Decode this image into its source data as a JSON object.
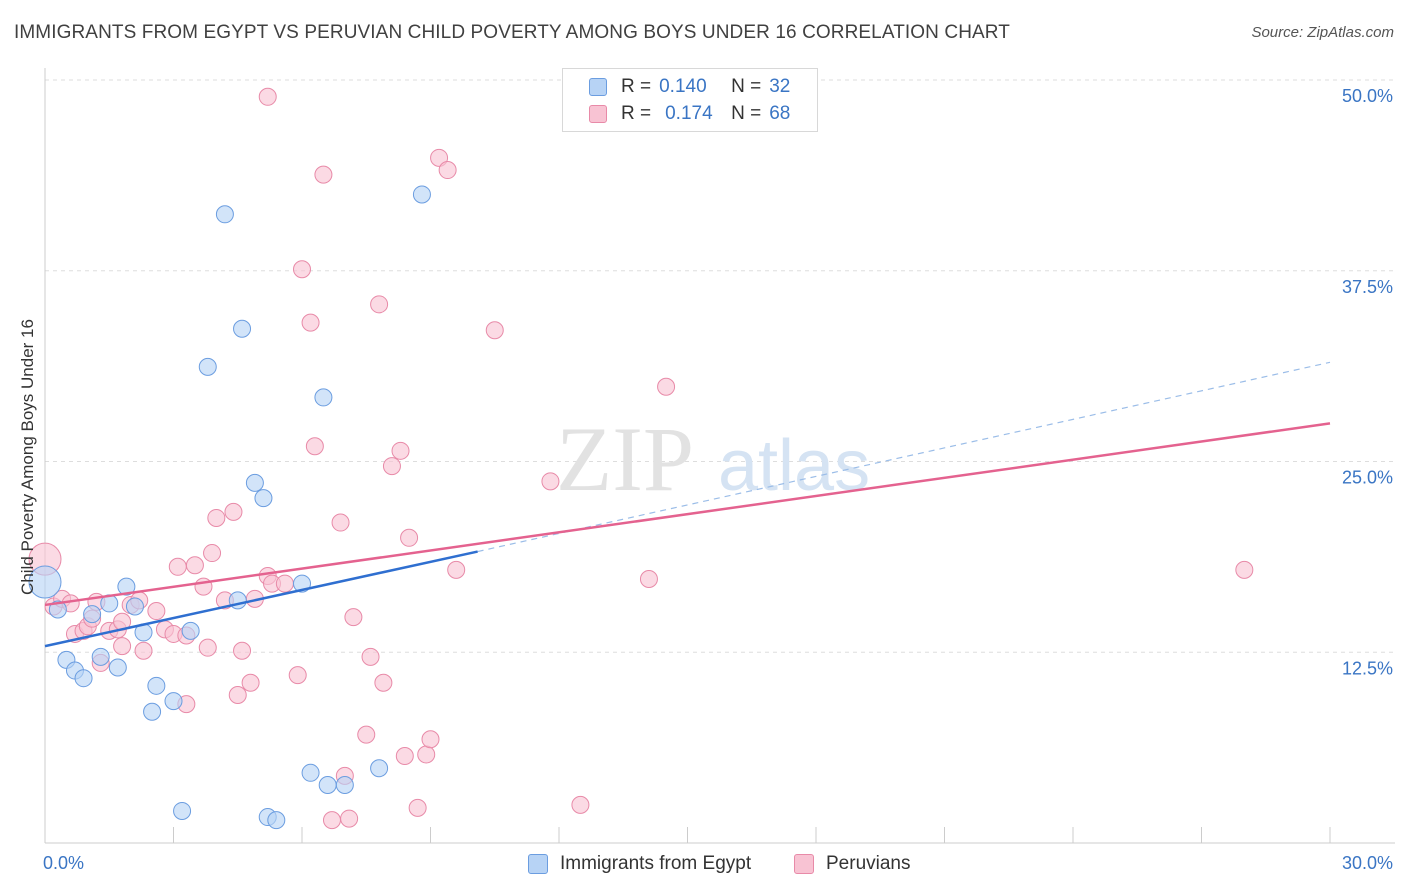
{
  "header": {
    "title": "IMMIGRANTS FROM EGYPT VS PERUVIAN CHILD POVERTY AMONG BOYS UNDER 16 CORRELATION CHART",
    "source": "Source: ZipAtlas.com"
  },
  "watermark": {
    "zip": "ZIP",
    "atlas": "atlas"
  },
  "legend": {
    "rows": [
      {
        "r_label": "R =",
        "r_value": "0.140",
        "n_label": "N =",
        "n_value": "32"
      },
      {
        "r_label": "R =",
        "r_value": "0.174",
        "n_label": "N =",
        "n_value": "68"
      }
    ]
  },
  "bottom_legend": {
    "items": [
      "Immigrants from Egypt",
      "Peruvians"
    ]
  },
  "colors": {
    "blue_fill": "#b7d3f5",
    "blue_stroke": "#6b9de0",
    "blue_line": "#2f6fd0",
    "pink_fill": "#f8c3d3",
    "pink_stroke": "#e88aa8",
    "pink_line": "#e4628f",
    "tick_text": "#3a75c4",
    "grid": "#dddddd"
  },
  "chart_data": {
    "type": "scatter",
    "title": "IMMIGRANTS FROM EGYPT VS PERUVIAN CHILD POVERTY AMONG BOYS UNDER 16 CORRELATION CHART",
    "xlabel": "",
    "ylabel": "Child Poverty Among Boys Under 16",
    "xlim": [
      0,
      30
    ],
    "ylim": [
      0,
      50
    ],
    "x_tick_labels": [
      "0.0%",
      "30.0%"
    ],
    "y_ticks": [
      12.5,
      25.0,
      37.5,
      50.0
    ],
    "y_tick_labels": [
      "12.5%",
      "25.0%",
      "37.5%",
      "50.0%"
    ],
    "series": [
      {
        "name": "Immigrants from Egypt",
        "R": 0.14,
        "N": 32,
        "trend": {
          "x": [
            0,
            10.1
          ],
          "y": [
            12.9,
            19.1
          ]
        },
        "trend_dashed": {
          "x": [
            10.1,
            30
          ],
          "y": [
            19.1,
            31.5
          ]
        },
        "points": [
          {
            "x": 0.0,
            "y": 17.1,
            "big": true
          },
          {
            "x": 0.3,
            "y": 15.3
          },
          {
            "x": 0.5,
            "y": 12.0
          },
          {
            "x": 0.7,
            "y": 11.3
          },
          {
            "x": 0.9,
            "y": 10.8
          },
          {
            "x": 1.1,
            "y": 15.0
          },
          {
            "x": 1.3,
            "y": 12.2
          },
          {
            "x": 1.5,
            "y": 15.7
          },
          {
            "x": 1.7,
            "y": 11.5
          },
          {
            "x": 1.9,
            "y": 16.8
          },
          {
            "x": 2.1,
            "y": 15.5
          },
          {
            "x": 2.3,
            "y": 13.8
          },
          {
            "x": 2.5,
            "y": 8.6
          },
          {
            "x": 2.6,
            "y": 10.3
          },
          {
            "x": 3.0,
            "y": 9.3
          },
          {
            "x": 3.2,
            "y": 2.1
          },
          {
            "x": 3.4,
            "y": 13.9
          },
          {
            "x": 3.8,
            "y": 31.2
          },
          {
            "x": 4.2,
            "y": 41.2
          },
          {
            "x": 4.5,
            "y": 15.9
          },
          {
            "x": 4.6,
            "y": 33.7
          },
          {
            "x": 4.9,
            "y": 23.6
          },
          {
            "x": 5.1,
            "y": 22.6
          },
          {
            "x": 5.2,
            "y": 1.7
          },
          {
            "x": 5.4,
            "y": 1.5
          },
          {
            "x": 6.0,
            "y": 17.0
          },
          {
            "x": 6.2,
            "y": 4.6
          },
          {
            "x": 6.6,
            "y": 3.8
          },
          {
            "x": 6.5,
            "y": 29.2
          },
          {
            "x": 7.0,
            "y": 3.8
          },
          {
            "x": 7.8,
            "y": 4.9
          },
          {
            "x": 8.8,
            "y": 42.5
          }
        ]
      },
      {
        "name": "Peruvians",
        "R": 0.174,
        "N": 68,
        "trend": {
          "x": [
            0,
            30
          ],
          "y": [
            15.6,
            27.5
          ]
        },
        "points": [
          {
            "x": 0.0,
            "y": 18.6,
            "big": true
          },
          {
            "x": 0.2,
            "y": 15.5
          },
          {
            "x": 0.4,
            "y": 16.0
          },
          {
            "x": 0.6,
            "y": 15.7
          },
          {
            "x": 0.7,
            "y": 13.7
          },
          {
            "x": 0.9,
            "y": 13.9
          },
          {
            "x": 1.0,
            "y": 14.2
          },
          {
            "x": 1.1,
            "y": 14.7
          },
          {
            "x": 1.2,
            "y": 15.8
          },
          {
            "x": 1.3,
            "y": 11.8
          },
          {
            "x": 1.5,
            "y": 13.9
          },
          {
            "x": 1.7,
            "y": 14.0
          },
          {
            "x": 1.8,
            "y": 12.9
          },
          {
            "x": 2.0,
            "y": 15.6
          },
          {
            "x": 2.2,
            "y": 15.9
          },
          {
            "x": 2.3,
            "y": 12.6
          },
          {
            "x": 2.6,
            "y": 15.2
          },
          {
            "x": 2.8,
            "y": 14.0
          },
          {
            "x": 3.0,
            "y": 13.7
          },
          {
            "x": 3.1,
            "y": 18.1
          },
          {
            "x": 3.3,
            "y": 9.1
          },
          {
            "x": 3.3,
            "y": 13.6
          },
          {
            "x": 3.5,
            "y": 18.2
          },
          {
            "x": 3.7,
            "y": 16.8
          },
          {
            "x": 3.8,
            "y": 12.8
          },
          {
            "x": 3.9,
            "y": 19.0
          },
          {
            "x": 4.0,
            "y": 21.3
          },
          {
            "x": 4.2,
            "y": 15.9
          },
          {
            "x": 4.4,
            "y": 21.7
          },
          {
            "x": 4.5,
            "y": 9.7
          },
          {
            "x": 4.6,
            "y": 12.6
          },
          {
            "x": 4.8,
            "y": 10.5
          },
          {
            "x": 4.9,
            "y": 16.0
          },
          {
            "x": 5.2,
            "y": 17.5
          },
          {
            "x": 5.3,
            "y": 17.0
          },
          {
            "x": 5.6,
            "y": 17.0
          },
          {
            "x": 5.9,
            "y": 11.0
          },
          {
            "x": 6.0,
            "y": 37.6
          },
          {
            "x": 6.2,
            "y": 34.1
          },
          {
            "x": 6.3,
            "y": 26.0
          },
          {
            "x": 6.5,
            "y": 43.8
          },
          {
            "x": 6.7,
            "y": 1.5
          },
          {
            "x": 6.9,
            "y": 21.0
          },
          {
            "x": 7.0,
            "y": 4.4
          },
          {
            "x": 7.1,
            "y": 1.6
          },
          {
            "x": 7.2,
            "y": 14.8
          },
          {
            "x": 7.5,
            "y": 7.1
          },
          {
            "x": 7.6,
            "y": 12.2
          },
          {
            "x": 7.8,
            "y": 35.3
          },
          {
            "x": 7.9,
            "y": 10.5
          },
          {
            "x": 8.1,
            "y": 24.7
          },
          {
            "x": 8.3,
            "y": 25.7
          },
          {
            "x": 8.4,
            "y": 5.7
          },
          {
            "x": 8.5,
            "y": 20.0
          },
          {
            "x": 8.7,
            "y": 2.3
          },
          {
            "x": 8.9,
            "y": 5.8
          },
          {
            "x": 9.0,
            "y": 6.8
          },
          {
            "x": 9.2,
            "y": 44.9
          },
          {
            "x": 9.4,
            "y": 44.1
          },
          {
            "x": 9.6,
            "y": 17.9
          },
          {
            "x": 10.5,
            "y": 33.6
          },
          {
            "x": 11.8,
            "y": 23.7
          },
          {
            "x": 12.5,
            "y": 2.5
          },
          {
            "x": 14.1,
            "y": 17.3
          },
          {
            "x": 14.5,
            "y": 29.9
          },
          {
            "x": 28.0,
            "y": 17.9
          },
          {
            "x": 5.2,
            "y": 48.9
          },
          {
            "x": 1.8,
            "y": 14.5
          }
        ]
      }
    ]
  }
}
